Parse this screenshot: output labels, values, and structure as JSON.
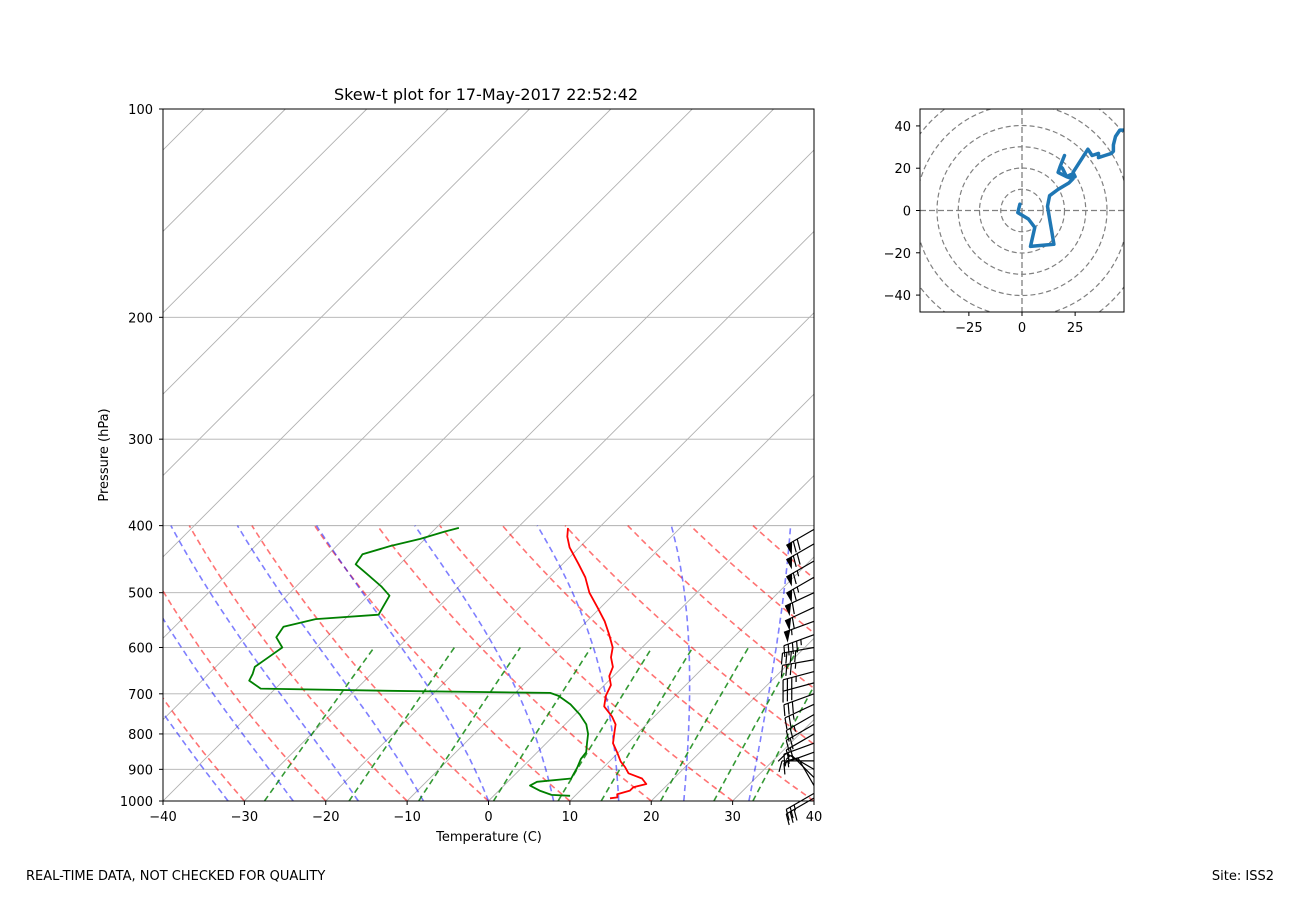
{
  "chart_data": [
    {
      "type": "line",
      "title": "Skew-t plot for 17-May-2017 22:52:42",
      "xlabel": "Temperature (C)",
      "ylabel": "Pressure (hPa)",
      "xlim": [
        -40,
        40
      ],
      "ylim": [
        1000,
        100
      ],
      "y_scale": "log",
      "x_ticks": [
        -40,
        -30,
        -20,
        -10,
        0,
        10,
        20,
        30,
        40
      ],
      "y_ticks": [
        100,
        200,
        300,
        400,
        500,
        600,
        700,
        800,
        900,
        1000
      ],
      "grid": true,
      "series": [
        {
          "role": "temperature",
          "color": "#ff0000",
          "points": [
            [
              991,
              14.6
            ],
            [
              988,
              15.4
            ],
            [
              978,
              15.0
            ],
            [
              966,
              16.1
            ],
            [
              955,
              16.1
            ],
            [
              945,
              17.3
            ],
            [
              928,
              16.1
            ],
            [
              912,
              13.8
            ],
            [
              893,
              12.6
            ],
            [
              877,
              11.4
            ],
            [
              850,
              9.8
            ],
            [
              825,
              8.2
            ],
            [
              800,
              7.2
            ],
            [
              775,
              6.2
            ],
            [
              755,
              4.8
            ],
            [
              730,
              2.6
            ],
            [
              705,
              1.5
            ],
            [
              680,
              0.8
            ],
            [
              660,
              -0.5
            ],
            [
              640,
              -1.2
            ],
            [
              620,
              -2.6
            ],
            [
              600,
              -3.6
            ],
            [
              575,
              -5.6
            ],
            [
              550,
              -7.8
            ],
            [
              525,
              -10.4
            ],
            [
              500,
              -13.2
            ],
            [
              475,
              -15.6
            ],
            [
              455,
              -18.0
            ],
            [
              430,
              -21.2
            ],
            [
              415,
              -22.8
            ],
            [
              403,
              -23.8
            ]
          ]
        },
        {
          "role": "dewpoint",
          "color": "#008000",
          "points": [
            [
              983,
              9.4
            ],
            [
              980,
              7.0
            ],
            [
              966,
              5.0
            ],
            [
              950,
              3.2
            ],
            [
              938,
              3.6
            ],
            [
              928,
              7.4
            ],
            [
              912,
              7.1
            ],
            [
              895,
              6.8
            ],
            [
              870,
              6.2
            ],
            [
              850,
              6.0
            ],
            [
              825,
              5.0
            ],
            [
              800,
              4.0
            ],
            [
              775,
              2.6
            ],
            [
              750,
              0.6
            ],
            [
              725,
              -1.8
            ],
            [
              705,
              -4.3
            ],
            [
              698,
              -5.7
            ],
            [
              693,
              -25.8
            ],
            [
              688,
              -41.8
            ],
            [
              670,
              -44.2
            ],
            [
              655,
              -44.6
            ],
            [
              640,
              -45.2
            ],
            [
              620,
              -44.7
            ],
            [
              600,
              -44.2
            ],
            [
              580,
              -46.2
            ],
            [
              560,
              -46.6
            ],
            [
              546,
              -43.6
            ],
            [
              538,
              -36.4
            ],
            [
              525,
              -36.8
            ],
            [
              505,
              -37.4
            ],
            [
              490,
              -39.5
            ],
            [
              470,
              -42.8
            ],
            [
              455,
              -45.4
            ],
            [
              440,
              -45.8
            ],
            [
              428,
              -43.4
            ],
            [
              418,
              -40.6
            ],
            [
              408,
              -38.5
            ],
            [
              403,
              -37.2
            ]
          ]
        }
      ],
      "reference_lines": {
        "dry_adiabats": {
          "color": "#ff0000",
          "style": "dashed"
        },
        "moist_adiabats": {
          "color": "#0000ff",
          "style": "dashed"
        },
        "mixing_ratio_lines": {
          "color": "#008000",
          "style": "dashed"
        },
        "isotherms": {
          "color": "#b0b0b0",
          "style": "solid"
        }
      },
      "wind_barbs": {
        "color": "#000000",
        "levels": [
          [
            990,
            240,
            30
          ],
          [
            975,
            240,
            25
          ],
          [
            950,
            330,
            10
          ],
          [
            925,
            315,
            5
          ],
          [
            900,
            300,
            15
          ],
          [
            875,
            270,
            15
          ],
          [
            850,
            250,
            15
          ],
          [
            825,
            250,
            20
          ],
          [
            800,
            240,
            20
          ],
          [
            775,
            240,
            20
          ],
          [
            750,
            240,
            25
          ],
          [
            725,
            245,
            25
          ],
          [
            700,
            250,
            30
          ],
          [
            675,
            255,
            30
          ],
          [
            650,
            255,
            35
          ],
          [
            625,
            260,
            35
          ],
          [
            600,
            260,
            40
          ],
          [
            575,
            250,
            45
          ],
          [
            550,
            250,
            55
          ],
          [
            525,
            245,
            60
          ],
          [
            500,
            245,
            60
          ],
          [
            475,
            240,
            65
          ],
          [
            450,
            240,
            65
          ],
          [
            425,
            240,
            70
          ],
          [
            405,
            240,
            70
          ]
        ]
      }
    },
    {
      "type": "line",
      "title": "",
      "xlabel": "",
      "ylabel": "",
      "xlim": [
        -48,
        48
      ],
      "ylim": [
        -48,
        48
      ],
      "x_ticks": [
        -25,
        0,
        25
      ],
      "y_ticks": [
        -40,
        -20,
        0,
        20,
        40
      ],
      "rings": [
        10,
        20,
        30,
        40,
        50,
        60,
        70
      ],
      "series": [
        {
          "role": "hodograph",
          "color": "#1f77b4",
          "points": [
            [
              -1,
              3
            ],
            [
              -2,
              -1
            ],
            [
              3,
              -4
            ],
            [
              6,
              -8
            ],
            [
              4,
              -17
            ],
            [
              15,
              -16
            ],
            [
              14,
              -10
            ],
            [
              13,
              -4
            ],
            [
              12,
              2
            ],
            [
              13,
              7
            ],
            [
              17,
              10
            ],
            [
              22,
              13
            ],
            [
              24,
              15
            ],
            [
              21,
              16
            ],
            [
              19,
              20
            ],
            [
              18,
              21
            ],
            [
              20,
              26
            ],
            [
              18,
              21
            ],
            [
              17,
              18
            ],
            [
              21,
              16
            ],
            [
              23,
              17
            ],
            [
              25,
              16
            ],
            [
              24,
              18
            ],
            [
              31,
              29
            ],
            [
              33,
              26
            ],
            [
              36,
              27
            ],
            [
              36,
              25
            ],
            [
              39,
              26
            ],
            [
              42,
              27
            ],
            [
              43,
              28
            ],
            [
              43,
              31
            ],
            [
              44,
              35
            ],
            [
              46,
              38
            ],
            [
              48,
              38
            ]
          ]
        }
      ]
    }
  ],
  "footer": {
    "left": "REAL-TIME DATA, NOT CHECKED FOR QUALITY",
    "right": "Site: ISS2"
  }
}
